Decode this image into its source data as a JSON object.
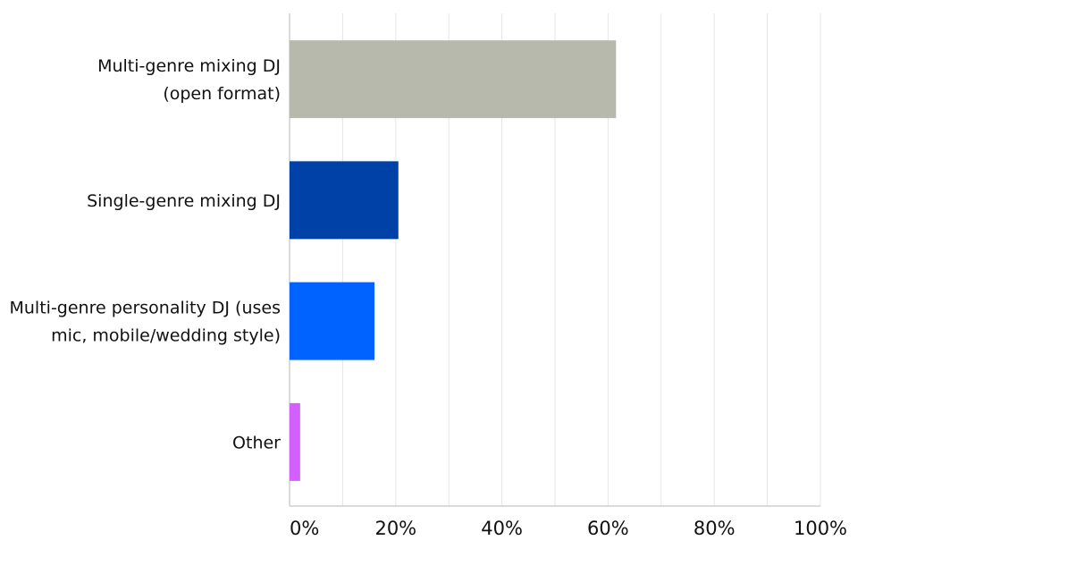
{
  "chart_data": {
    "type": "bar",
    "orientation": "horizontal",
    "title": "",
    "xlabel": "",
    "ylabel": "",
    "categories": [
      [
        "Multi-genre mixing DJ",
        "(open format)"
      ],
      [
        "Single-genre mixing DJ"
      ],
      [
        "Multi-genre personality DJ (uses",
        "mic, mobile/wedding style)"
      ],
      [
        "Other"
      ]
    ],
    "values": [
      61.5,
      20.5,
      16.0,
      2.0
    ],
    "unit": "%",
    "xlim": [
      0,
      100
    ],
    "ticks": [
      "0%",
      "20%",
      "40%",
      "60%",
      "80%",
      "100%"
    ],
    "tick_values": [
      0,
      20,
      40,
      60,
      80,
      100
    ],
    "minor_step": 10,
    "grid": true,
    "legend": "none",
    "colors": [
      "#b7b9ac",
      "#0041a8",
      "#0062ff",
      "#d45fff"
    ]
  }
}
